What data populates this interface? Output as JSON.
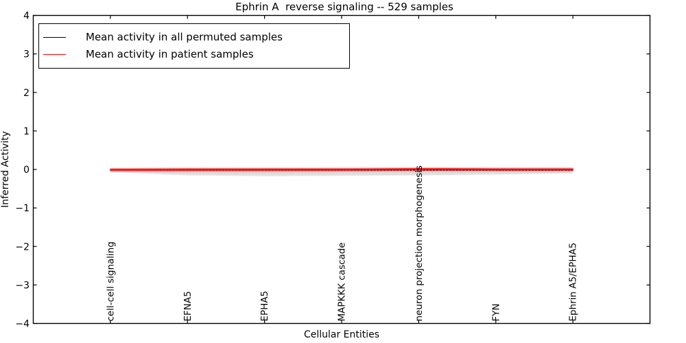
{
  "title": "Ephrin A  reverse signaling -- 529 samples",
  "legend": {
    "position": "upper left",
    "items": [
      {
        "label": "Mean activity in all permuted samples",
        "color": "#000000"
      },
      {
        "label": "Mean activity in patient samples",
        "color": "#ff0000"
      }
    ]
  },
  "chart_data": {
    "type": "line",
    "title": "Ephrin A  reverse signaling -- 529 samples",
    "xlabel": "Cellular Entities",
    "ylabel": "Inferred Activity",
    "ylim": [
      -4,
      4
    ],
    "yticks": [
      4,
      3,
      2,
      1,
      0,
      -1,
      -2,
      -3,
      -4
    ],
    "ytick_labels": [
      "4",
      "3",
      "2",
      "1",
      "0",
      "−1",
      "−2",
      "−3",
      "−4"
    ],
    "grid": false,
    "tick_direction": "in",
    "x_tick_label_rotation": "vertical",
    "categories": [
      "cell-cell signaling",
      "EFNA5",
      "EPHA5",
      "MAPKKK cascade",
      "neuron projection morphogenesis",
      "FYN",
      "Ephrin A5/EPHA5"
    ],
    "series": [
      {
        "name": "Mean activity in all permuted samples",
        "color": "#000000",
        "line_style": "dotted",
        "line_width": 1.1,
        "values": [
          -0.02,
          -0.02,
          -0.02,
          -0.02,
          -0.02,
          -0.02,
          -0.02
        ]
      },
      {
        "name": "Mean activity in patient samples",
        "color": "#ff0000",
        "line_style": "solid",
        "line_width": 2.0,
        "glow": true,
        "values": [
          -0.01,
          -0.005,
          -0.005,
          -0.005,
          0.01,
          0.0,
          0.0
        ]
      }
    ],
    "envelopes": [
      {
        "name": "permuted-samples-spread",
        "color": "#c8c8c8",
        "opacity": 0.6,
        "upper": [
          0.02,
          0.04,
          0.045,
          0.045,
          0.045,
          0.04,
          0.05
        ],
        "lower": [
          -0.07,
          -0.15,
          -0.17,
          -0.16,
          -0.15,
          -0.13,
          -0.1
        ]
      },
      {
        "name": "patient-samples-spread",
        "color": "#ff0000",
        "opacity": 0.3,
        "upper": [
          0.025,
          0.035,
          0.035,
          0.035,
          0.045,
          0.04,
          0.04
        ],
        "lower": [
          -0.055,
          -0.065,
          -0.065,
          -0.06,
          -0.05,
          -0.05,
          -0.05
        ]
      }
    ]
  }
}
